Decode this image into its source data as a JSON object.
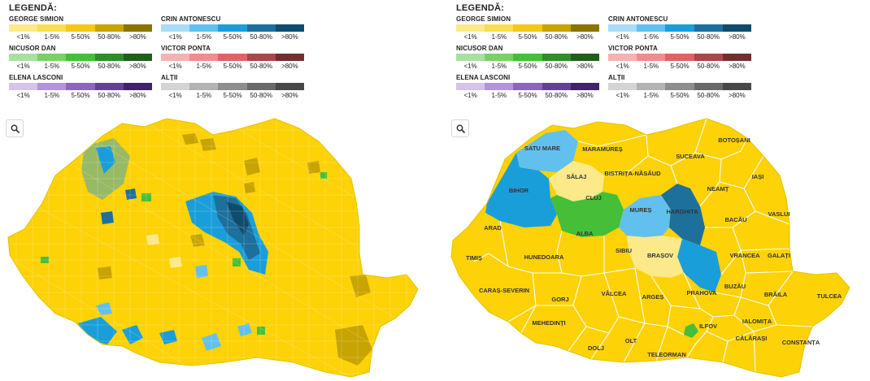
{
  "legend": {
    "title": "LEGENDĂ:",
    "bin_labels": [
      "<1%",
      "1-5%",
      "5-50%",
      "50-80%",
      ">80%"
    ],
    "candidates": [
      {
        "name": "GEORGE SIMION",
        "colors": [
          "#fbe98a",
          "#f7dd52",
          "#f0c919",
          "#c7a400",
          "#8a7400"
        ]
      },
      {
        "name": "CRIN ANTONESCU",
        "colors": [
          "#a9dcf5",
          "#62c0ee",
          "#1a9ed9",
          "#1d6f9c",
          "#0f4b6c"
        ]
      },
      {
        "name": "NICUSOR DAN",
        "colors": [
          "#a8e0a0",
          "#78d06a",
          "#44bf37",
          "#2f8e27",
          "#1f5f1a"
        ]
      },
      {
        "name": "VICTOR PONTA",
        "colors": [
          "#f5b2b2",
          "#ef8c8c",
          "#de6464",
          "#a84848",
          "#722e2e"
        ]
      },
      {
        "name": "ELENA LASCONI",
        "colors": [
          "#d5c3ea",
          "#b294dc",
          "#8c64c8",
          "#63409d",
          "#40216c"
        ]
      },
      {
        "name": "ALȚII",
        "colors": [
          "#d4d4d4",
          "#b3b3b3",
          "#8e8e8e",
          "#6a6a6a",
          "#484848"
        ]
      }
    ]
  },
  "zoom_icon": "search-icon",
  "map_colors": {
    "simion": "#fdd207",
    "antonescu_light": "#62c0ee",
    "antonescu_mid": "#1a9ed9",
    "antonescu_dark": "#1d6f9c",
    "dan": "#44bf37",
    "simion_light": "#fbe98a",
    "border": "#ffffff"
  },
  "counties": [
    {
      "name": "SATU MARE",
      "winner": "Crin Antonescu"
    },
    {
      "name": "MARAMUREȘ",
      "winner": "George Simion"
    },
    {
      "name": "BOTOȘANI",
      "winner": "George Simion"
    },
    {
      "name": "SUCEAVA",
      "winner": "George Simion"
    },
    {
      "name": "SĂLAJ",
      "winner": "George Simion"
    },
    {
      "name": "BISTRIȚA-NĂSĂUD",
      "winner": "George Simion"
    },
    {
      "name": "IAȘI",
      "winner": "George Simion"
    },
    {
      "name": "BIHOR",
      "winner": "Crin Antonescu"
    },
    {
      "name": "CLUJ",
      "winner": "Nicusor Dan"
    },
    {
      "name": "NEAMȚ",
      "winner": "George Simion"
    },
    {
      "name": "HARGHITA",
      "winner": "Crin Antonescu"
    },
    {
      "name": "MUREȘ",
      "winner": "Crin Antonescu"
    },
    {
      "name": "VASLUI",
      "winner": "George Simion"
    },
    {
      "name": "BACĂU",
      "winner": "George Simion"
    },
    {
      "name": "ARAD",
      "winner": "George Simion"
    },
    {
      "name": "ALBA",
      "winner": "George Simion"
    },
    {
      "name": "SIBIU",
      "winner": "George Simion"
    },
    {
      "name": "BRAȘOV",
      "winner": "George Simion"
    },
    {
      "name": "VRANCEA",
      "winner": "George Simion"
    },
    {
      "name": "GALAȚI",
      "winner": "George Simion"
    },
    {
      "name": "TIMIȘ",
      "winner": "George Simion"
    },
    {
      "name": "HUNEDOARA",
      "winner": "George Simion"
    },
    {
      "name": "CARAȘ-SEVERIN",
      "winner": "George Simion"
    },
    {
      "name": "VÂLCEA",
      "winner": "George Simion"
    },
    {
      "name": "PRAHOVA",
      "winner": "George Simion"
    },
    {
      "name": "BUZĂU",
      "winner": "George Simion"
    },
    {
      "name": "BRĂILA",
      "winner": "George Simion"
    },
    {
      "name": "TULCEA",
      "winner": "George Simion"
    },
    {
      "name": "GORJ",
      "winner": "George Simion"
    },
    {
      "name": "ARGEȘ",
      "winner": "George Simion"
    },
    {
      "name": "MEHEDINȚI",
      "winner": "George Simion"
    },
    {
      "name": "IALOMIȚA",
      "winner": "George Simion"
    },
    {
      "name": "ILFOV",
      "winner": "George Simion"
    },
    {
      "name": "CĂLĂRAȘI",
      "winner": "George Simion"
    },
    {
      "name": "CONSTANȚA",
      "winner": "George Simion"
    },
    {
      "name": "DOLJ",
      "winner": "George Simion"
    },
    {
      "name": "OLT",
      "winner": "George Simion"
    },
    {
      "name": "TELEORMAN",
      "winner": "George Simion"
    }
  ]
}
